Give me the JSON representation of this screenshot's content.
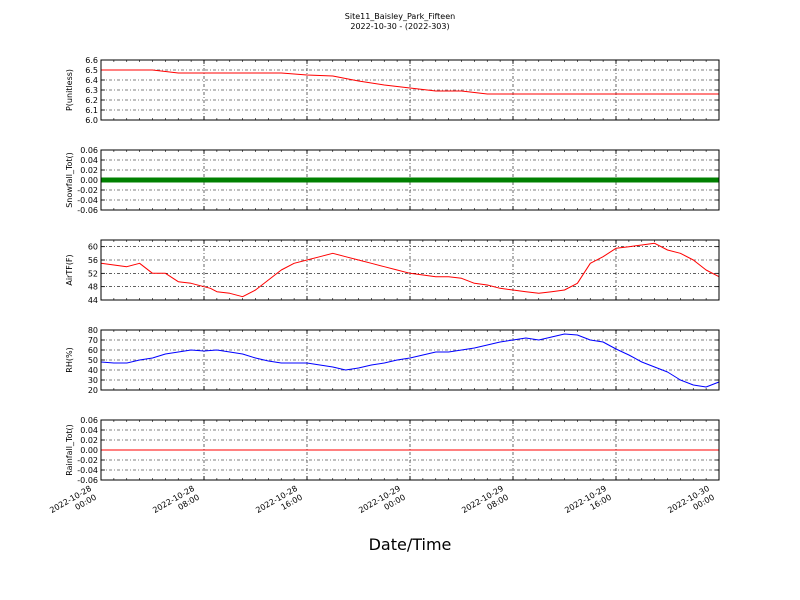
{
  "figure": {
    "title": "Site11_Baisley_Park_Fifteen",
    "subtitle": "2022-10-30 - (2022-303)",
    "xlabel": "Date/Time"
  },
  "chart_data": [
    {
      "type": "line",
      "ylabel": "P(unitless)",
      "ylim": [
        6.0,
        6.6
      ],
      "yticks": [
        "6.0",
        "6.1",
        "6.2",
        "6.3",
        "6.4",
        "6.5",
        "6.6"
      ],
      "xlim": [
        0,
        48
      ],
      "grid": true,
      "color": "#ff0000",
      "x": [
        0,
        2,
        4,
        6,
        8,
        10,
        12,
        14,
        16,
        18,
        20,
        22,
        24,
        26,
        28,
        30,
        32,
        34,
        35,
        37,
        38,
        39,
        40,
        41,
        42,
        44,
        45,
        46,
        47,
        48
      ],
      "y": [
        6.5,
        6.5,
        6.5,
        6.47,
        6.47,
        6.47,
        6.47,
        6.47,
        6.45,
        6.44,
        6.39,
        6.35,
        6.32,
        6.29,
        6.29,
        6.26,
        6.26,
        6.26,
        6.26,
        6.26,
        6.26,
        6.26,
        6.26,
        6.26,
        6.26,
        6.26,
        6.26,
        6.26,
        6.26,
        6.26
      ]
    },
    {
      "type": "line",
      "ylabel": "Snowfall_Tot()",
      "ylim": [
        -0.06,
        0.06
      ],
      "yticks": [
        "-0.06",
        "-0.04",
        "-0.02",
        "0.00",
        "0.02",
        "0.04",
        "0.06"
      ],
      "xlim": [
        0,
        48
      ],
      "grid": true,
      "color": "#008000",
      "marker": "square",
      "x": [
        0,
        48
      ],
      "y": [
        0.0,
        0.0
      ]
    },
    {
      "type": "line",
      "ylabel": "AirTF(F)",
      "ylim": [
        44,
        62
      ],
      "yticks": [
        "44",
        "48",
        "52",
        "56",
        "60"
      ],
      "xlim": [
        0,
        48
      ],
      "grid": true,
      "color": "#ff0000",
      "x": [
        0,
        1,
        2,
        3,
        4,
        5,
        6,
        7,
        8,
        8.5,
        9,
        10,
        11,
        12,
        13,
        14,
        15,
        16,
        17,
        18,
        19,
        20,
        21,
        22,
        23,
        24,
        25,
        26,
        27,
        28,
        29,
        30,
        31,
        32,
        33,
        34,
        35,
        36,
        37,
        38,
        39,
        40,
        41,
        42,
        43,
        44,
        45,
        46,
        47,
        48
      ],
      "y": [
        55,
        54.5,
        54,
        55,
        52,
        52,
        49.5,
        49,
        48,
        47.5,
        46.5,
        46,
        45,
        47,
        50,
        53,
        55,
        56,
        57,
        58,
        57,
        56,
        55,
        54,
        53,
        52,
        51.5,
        51,
        51,
        50.5,
        49,
        48.5,
        47.5,
        47,
        46.5,
        46,
        46.5,
        47,
        49,
        55,
        57,
        59.5,
        60,
        60.5,
        61,
        59,
        58,
        56,
        53,
        51
      ]
    },
    {
      "type": "line",
      "ylabel": "RH(%)",
      "ylim": [
        20,
        80
      ],
      "yticks": [
        "20",
        "30",
        "40",
        "50",
        "60",
        "70",
        "80"
      ],
      "xlim": [
        0,
        48
      ],
      "grid": true,
      "color": "#0000ff",
      "x": [
        0,
        1,
        2,
        3,
        4,
        5,
        6,
        7,
        8,
        9,
        10,
        11,
        12,
        13,
        14,
        15,
        16,
        17,
        18,
        19,
        20,
        21,
        22,
        23,
        24,
        25,
        26,
        27,
        28,
        29,
        30,
        31,
        32,
        33,
        34,
        35,
        36,
        37,
        38,
        39,
        40,
        41,
        42,
        43,
        44,
        45,
        46,
        47,
        48
      ],
      "y": [
        48,
        47,
        47,
        50,
        52,
        56,
        58,
        60,
        59,
        60,
        58,
        56,
        52,
        49,
        47,
        47,
        47,
        45,
        43,
        40,
        42,
        45,
        47,
        50,
        52,
        55,
        58,
        58,
        60,
        62,
        65,
        68,
        70,
        72,
        70,
        73,
        76,
        75,
        70,
        68,
        61,
        55,
        48,
        43,
        38,
        30,
        25,
        23,
        28
      ]
    },
    {
      "type": "line",
      "ylabel": "Rainfall_Tot()",
      "ylim": [
        -0.06,
        0.06
      ],
      "yticks": [
        "-0.06",
        "-0.04",
        "-0.02",
        "0.00",
        "0.02",
        "0.04",
        "0.06"
      ],
      "xlim": [
        0,
        48
      ],
      "grid": true,
      "color": "#ff0000",
      "x": [
        0,
        48
      ],
      "y": [
        0.0,
        0.0
      ]
    }
  ],
  "xticks": [
    {
      "x": 0,
      "line1": "2022-10-28",
      "line2": "00:00"
    },
    {
      "x": 8,
      "line1": "2022-10-28",
      "line2": "08:00"
    },
    {
      "x": 16,
      "line1": "2022-10-28",
      "line2": "16:00"
    },
    {
      "x": 24,
      "line1": "2022-10-29",
      "line2": "00:00"
    },
    {
      "x": 32,
      "line1": "2022-10-29",
      "line2": "08:00"
    },
    {
      "x": 40,
      "line1": "2022-10-29",
      "line2": "16:00"
    },
    {
      "x": 48,
      "line1": "2022-10-30",
      "line2": "00:00"
    }
  ]
}
